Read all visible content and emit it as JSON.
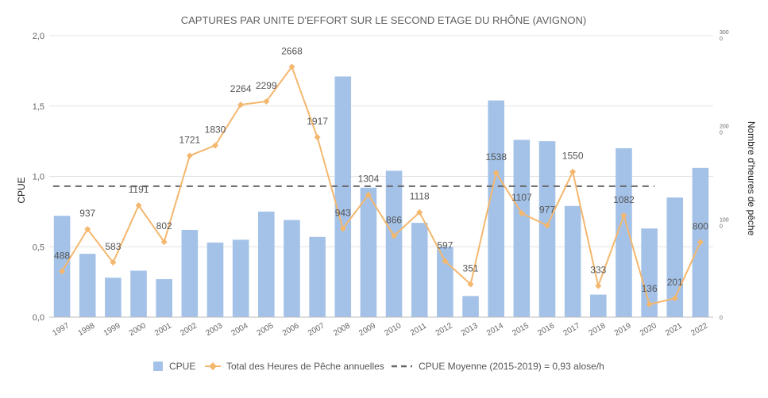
{
  "chart_data": {
    "type": "bar",
    "title": "CAPTURES PAR UNITE D'EFFORT SUR LE SECOND ETAGE DU RHÔNE (AVIGNON)",
    "ylabel": "CPUE",
    "y2label": "Nombre d'heures de pêche",
    "ylim": [
      0,
      2.0
    ],
    "y2lim": [
      0,
      3000
    ],
    "yticks": [
      "0,0",
      "0,5",
      "1,0",
      "1,5",
      "2,0"
    ],
    "y2ticks": [
      "0",
      "100\n0",
      "200\n0",
      "300\n0"
    ],
    "categories": [
      "1997",
      "1998",
      "1999",
      "2000",
      "2001",
      "2002",
      "2003",
      "2004",
      "2005",
      "2006",
      "2007",
      "2008",
      "2009",
      "2010",
      "2011",
      "2012",
      "2013",
      "2014",
      "2015",
      "2016",
      "2017",
      "2018",
      "2019",
      "2020",
      "2021",
      "2022"
    ],
    "series": [
      {
        "name": "CPUE",
        "type": "bar",
        "axis": "left",
        "color": "#a4c2e8",
        "values": [
          0.72,
          0.45,
          0.28,
          0.33,
          0.27,
          0.62,
          0.53,
          0.55,
          0.75,
          0.69,
          0.57,
          1.71,
          0.92,
          1.04,
          0.67,
          0.5,
          0.15,
          1.54,
          1.26,
          1.25,
          0.79,
          0.16,
          1.2,
          0.63,
          0.85,
          1.06
        ]
      },
      {
        "name": "Total des Heures de Pêche annuelles",
        "type": "line",
        "axis": "right",
        "color": "#f4b76e",
        "values": [
          488,
          937,
          583,
          1191,
          802,
          1721,
          1830,
          2264,
          2299,
          2668,
          1917,
          943,
          1304,
          866,
          1118,
          597,
          351,
          1538,
          1107,
          977,
          1550,
          333,
          1082,
          136,
          201,
          800
        ],
        "labels": [
          "488",
          "937",
          "583",
          "1191",
          "802",
          "1721",
          "1830",
          "2264",
          "2299",
          "2668",
          "1917",
          "943",
          "1304",
          "866",
          "1118",
          "597",
          "351",
          "1538",
          "1107",
          "977",
          "1550",
          "333",
          "1082",
          "136",
          "201",
          "800"
        ]
      },
      {
        "name": "CPUE Moyenne (2015-2019) = 0,93 alose/h",
        "type": "line",
        "style": "dashed",
        "axis": "left",
        "color": "#666666",
        "value": 0.93,
        "x_range": [
          "1997",
          "2020"
        ]
      }
    ],
    "legend": "bottom",
    "grid": true
  }
}
